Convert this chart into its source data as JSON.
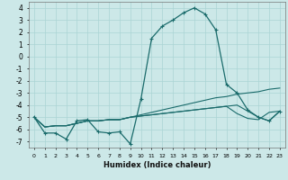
{
  "xlabel": "Humidex (Indice chaleur)",
  "x": [
    0,
    1,
    2,
    3,
    4,
    5,
    6,
    7,
    8,
    9,
    10,
    11,
    12,
    13,
    14,
    15,
    16,
    17,
    18,
    19,
    20,
    21,
    22,
    23
  ],
  "main_line": [
    -5.0,
    -6.3,
    -6.3,
    -6.8,
    -5.3,
    -5.2,
    -6.2,
    -6.3,
    -6.2,
    -7.2,
    -3.5,
    1.5,
    2.5,
    3.0,
    3.6,
    4.0,
    3.5,
    2.2,
    -2.3,
    -3.0,
    -4.4,
    -5.0,
    -5.3,
    -4.5
  ],
  "flat1": [
    -5.0,
    -5.8,
    -5.7,
    -5.7,
    -5.5,
    -5.3,
    -5.3,
    -5.2,
    -5.2,
    -5.0,
    -4.8,
    -4.6,
    -4.4,
    -4.2,
    -4.0,
    -3.8,
    -3.6,
    -3.4,
    -3.3,
    -3.1,
    -3.0,
    -2.9,
    -2.7,
    -2.6
  ],
  "flat2": [
    -5.0,
    -5.8,
    -5.7,
    -5.7,
    -5.5,
    -5.3,
    -5.3,
    -5.2,
    -5.2,
    -5.0,
    -4.9,
    -4.8,
    -4.7,
    -4.6,
    -4.5,
    -4.4,
    -4.3,
    -4.2,
    -4.1,
    -4.0,
    -4.5,
    -5.0,
    -5.3,
    -4.5
  ],
  "flat3": [
    -5.0,
    -5.8,
    -5.7,
    -5.7,
    -5.5,
    -5.3,
    -5.3,
    -5.2,
    -5.2,
    -5.0,
    -4.9,
    -4.8,
    -4.7,
    -4.6,
    -4.5,
    -4.4,
    -4.3,
    -4.2,
    -4.1,
    -4.7,
    -5.1,
    -5.2,
    -4.6,
    -4.5
  ],
  "bg_color": "#cce8e8",
  "line_color": "#1a6b6b",
  "grid_color": "#aad4d4",
  "ylim": [
    -7.5,
    4.5
  ],
  "xlim": [
    -0.5,
    23.5
  ],
  "yticks": [
    -7,
    -6,
    -5,
    -4,
    -3,
    -2,
    -1,
    0,
    1,
    2,
    3,
    4
  ],
  "xticks": [
    0,
    1,
    2,
    3,
    4,
    5,
    6,
    7,
    8,
    9,
    10,
    11,
    12,
    13,
    14,
    15,
    16,
    17,
    18,
    19,
    20,
    21,
    22,
    23
  ]
}
